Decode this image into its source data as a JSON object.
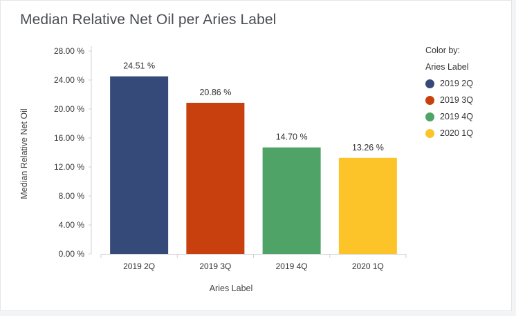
{
  "chart_data": {
    "type": "bar",
    "title": "Median Relative Net Oil per Aries Label",
    "xlabel": "Aries Label",
    "ylabel": "Median Relative Net Oil",
    "categories": [
      "2019 2Q",
      "2019 3Q",
      "2019 4Q",
      "2020 1Q"
    ],
    "values": [
      24.51,
      20.86,
      14.7,
      13.26
    ],
    "data_labels": [
      "24.51 %",
      "20.86 %",
      "14.70 %",
      "13.26 %"
    ],
    "colors": [
      "#354a78",
      "#c8400d",
      "#4fa366",
      "#fdc42a"
    ],
    "yticks": [
      0,
      4,
      8,
      12,
      16,
      20,
      24,
      28
    ],
    "ytick_labels": [
      "0.00 %",
      "4.00 %",
      "8.00 %",
      "12.00 %",
      "16.00 %",
      "20.00 %",
      "24.00 %",
      "28.00 %"
    ],
    "ylim": [
      0,
      28
    ],
    "grid": false,
    "legend": {
      "title_line1": "Color by:",
      "title_line2": "Aries Label",
      "position": "right",
      "entries": [
        "2019 2Q",
        "2019 3Q",
        "2019 4Q",
        "2020 1Q"
      ]
    }
  }
}
